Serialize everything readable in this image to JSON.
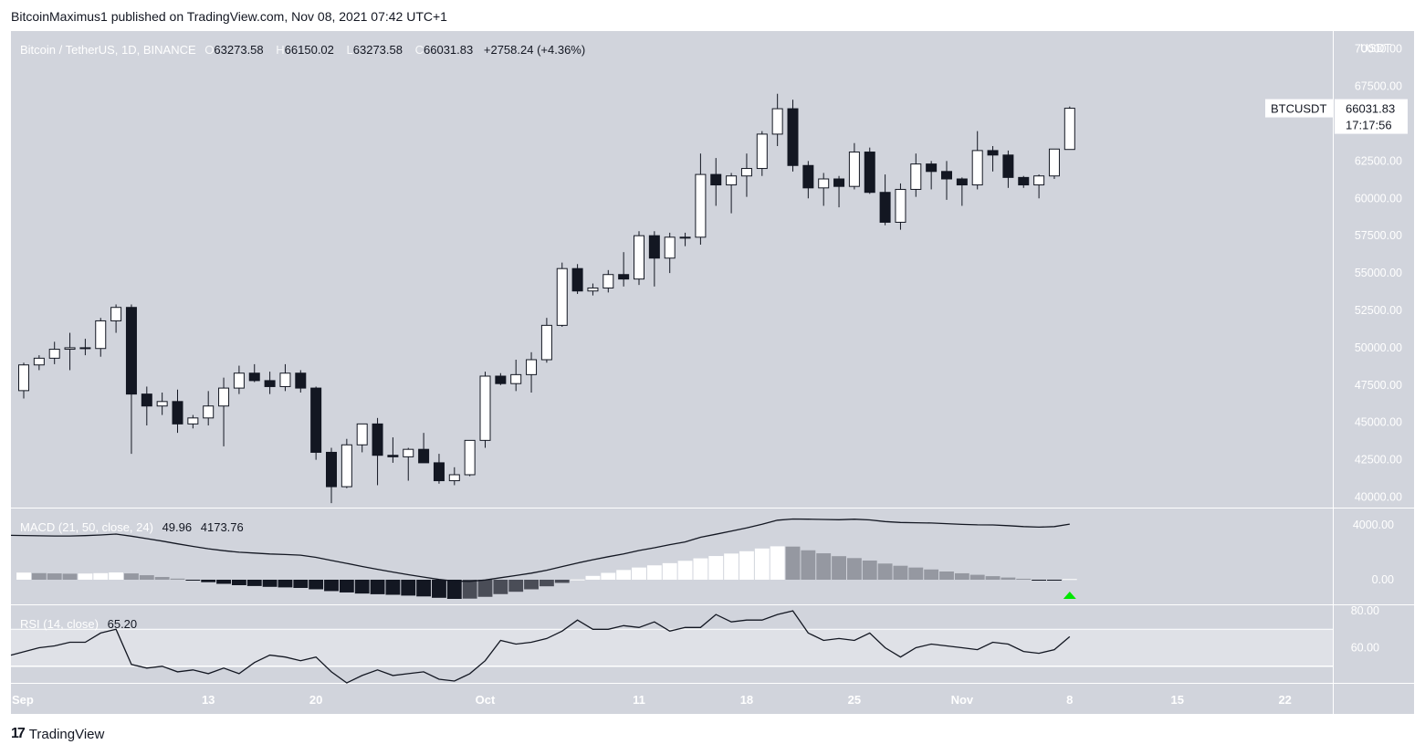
{
  "header": {
    "published_text": "BitcoinMaximus1 published on TradingView.com, Nov 08, 2021 07:42 UTC+1"
  },
  "footer": {
    "logo_mark": "17",
    "brand": "TradingView"
  },
  "colors": {
    "pane_bg": "#d1d4dc",
    "candle_up": "#ffffff",
    "candle_down": "#131722",
    "line": "#131722",
    "hist_grey": "#9598a1",
    "hist_dark": "#4a4d57",
    "signal_arrow": "#00e600",
    "label_bg": "#ffffff"
  },
  "chart_data": {
    "type": "candlestick",
    "symbol_title": "Bitcoin / TetherUS, 1D, BINANCE",
    "ohlc_readout": {
      "o_label": "O",
      "o": "63273.58",
      "h_label": "H",
      "h": "66150.02",
      "l_label": "L",
      "l": "63273.58",
      "c_label": "C",
      "c": "66031.83",
      "change": "+2758.24 (+4.36%)"
    },
    "price_axis": {
      "unit": "USDT",
      "ticks": [
        "70000.00",
        "67500.00",
        "65000.00",
        "62500.00",
        "60000.00",
        "57500.00",
        "55000.00",
        "52500.00",
        "50000.00",
        "47500.00",
        "45000.00",
        "42500.00",
        "40000.00"
      ],
      "tick_values": [
        70000,
        67500,
        65000,
        62500,
        60000,
        57500,
        55000,
        52500,
        50000,
        47500,
        45000,
        42500,
        40000
      ],
      "ylim": [
        39300,
        71200
      ]
    },
    "last_price_label": {
      "symbol": "BTCUSDT",
      "price": "66031.83",
      "countdown": "17:17:56",
      "value": 66031.83
    },
    "date_axis": {
      "labels": [
        "Sep",
        "13",
        "20",
        "Oct",
        "11",
        "18",
        "25",
        "Nov",
        "8",
        "15",
        "22"
      ],
      "label_day_index": [
        0,
        12,
        19,
        30,
        40,
        47,
        54,
        61,
        68,
        75,
        82
      ]
    },
    "candles": [
      [
        47130,
        49000,
        46600,
        48850
      ],
      [
        48850,
        49500,
        48500,
        49300
      ],
      [
        49300,
        50400,
        48900,
        49900
      ],
      [
        49900,
        51000,
        48500,
        50000
      ],
      [
        50000,
        50600,
        49500,
        49950
      ],
      [
        49950,
        52000,
        49400,
        51800
      ],
      [
        51800,
        52900,
        51000,
        52700
      ],
      [
        52700,
        52900,
        42900,
        46900
      ],
      [
        46900,
        47400,
        44800,
        46100
      ],
      [
        46100,
        47000,
        45500,
        46400
      ],
      [
        46400,
        47200,
        44300,
        44900
      ],
      [
        44900,
        45500,
        44600,
        45300
      ],
      [
        45300,
        47100,
        44800,
        46100
      ],
      [
        46100,
        48000,
        43400,
        47300
      ],
      [
        47300,
        48800,
        46900,
        48300
      ],
      [
        48300,
        48900,
        47700,
        47800
      ],
      [
        47800,
        48400,
        46900,
        47400
      ],
      [
        47400,
        48900,
        47100,
        48300
      ],
      [
        48300,
        48500,
        47000,
        47300
      ],
      [
        47300,
        47400,
        42500,
        43000
      ],
      [
        43000,
        43300,
        39600,
        40700
      ],
      [
        40700,
        43900,
        40600,
        43500
      ],
      [
        43500,
        44900,
        43000,
        44900
      ],
      [
        44900,
        45300,
        40800,
        42800
      ],
      [
        42800,
        44000,
        42300,
        42700
      ],
      [
        42700,
        43300,
        41100,
        43200
      ],
      [
        43200,
        44300,
        42500,
        42300
      ],
      [
        42300,
        42900,
        40900,
        41100
      ],
      [
        41100,
        42000,
        40800,
        41500
      ],
      [
        41500,
        43800,
        41400,
        43800
      ],
      [
        43800,
        48400,
        43300,
        48100
      ],
      [
        48100,
        48300,
        47500,
        47600
      ],
      [
        47600,
        49200,
        47100,
        48200
      ],
      [
        48200,
        49700,
        47000,
        49200
      ],
      [
        49200,
        52000,
        49000,
        51500
      ],
      [
        51500,
        55700,
        51400,
        55300
      ],
      [
        55300,
        55600,
        53600,
        53800
      ],
      [
        53800,
        54300,
        53500,
        54000
      ],
      [
        54000,
        55200,
        53700,
        54900
      ],
      [
        54900,
        56400,
        54100,
        54600
      ],
      [
        54600,
        57800,
        54200,
        57500
      ],
      [
        57500,
        57800,
        54100,
        56000
      ],
      [
        56000,
        57700,
        55000,
        57400
      ],
      [
        57400,
        57700,
        56800,
        57400
      ],
      [
        57400,
        63000,
        56900,
        61600
      ],
      [
        61600,
        62700,
        59500,
        60900
      ],
      [
        60900,
        61700,
        59000,
        61500
      ],
      [
        61500,
        63000,
        60100,
        62000
      ],
      [
        62000,
        64500,
        61500,
        64300
      ],
      [
        64300,
        67000,
        63500,
        66000
      ],
      [
        66000,
        66600,
        61800,
        62200
      ],
      [
        62200,
        62500,
        60000,
        60700
      ],
      [
        60700,
        61700,
        59500,
        61300
      ],
      [
        61300,
        61500,
        59400,
        60800
      ],
      [
        60800,
        63700,
        60600,
        63100
      ],
      [
        63100,
        63400,
        60300,
        60400
      ],
      [
        60400,
        61600,
        58200,
        58400
      ],
      [
        58400,
        61000,
        57900,
        60600
      ],
      [
        60600,
        63000,
        60100,
        62300
      ],
      [
        62300,
        62500,
        60600,
        61800
      ],
      [
        61800,
        62500,
        59900,
        61300
      ],
      [
        61300,
        61400,
        59500,
        60900
      ],
      [
        60900,
        64500,
        60600,
        63200
      ],
      [
        63200,
        63500,
        61800,
        62900
      ],
      [
        62900,
        63200,
        60700,
        61400
      ],
      [
        61400,
        61500,
        60700,
        60900
      ],
      [
        60900,
        61600,
        60000,
        61500
      ],
      [
        61500,
        63300,
        61300,
        63300
      ],
      [
        63273.58,
        66150.02,
        63273.58,
        66031.83
      ]
    ],
    "macd": {
      "label": "MACD (21, 50, close, 24)",
      "hist_value": "49.96",
      "macd_value": "4173.76",
      "ticks": [
        "4000.00",
        "0.00"
      ],
      "tick_values": [
        4000,
        0
      ],
      "ylim": [
        -1800,
        5200
      ],
      "line": [
        3240,
        3210,
        3190,
        3190,
        3220,
        3270,
        3330,
        3180,
        3000,
        2820,
        2620,
        2430,
        2260,
        2120,
        2010,
        1950,
        1880,
        1840,
        1790,
        1630,
        1410,
        1190,
        970,
        760,
        560,
        370,
        190,
        20,
        -100,
        -120,
        -20,
        150,
        310,
        480,
        690,
        960,
        1220,
        1460,
        1680,
        1880,
        2130,
        2330,
        2560,
        2760,
        3100,
        3320,
        3550,
        3780,
        4050,
        4350,
        4430,
        4420,
        4400,
        4380,
        4420,
        4370,
        4250,
        4180,
        4160,
        4140,
        4090,
        4040,
        4010,
        4000,
        3950,
        3880,
        3840,
        3880,
        4060
      ],
      "hist": [
        520,
        480,
        460,
        440,
        450,
        480,
        530,
        460,
        330,
        200,
        80,
        -60,
        -180,
        -300,
        -400,
        -460,
        -520,
        -560,
        -600,
        -700,
        -830,
        -930,
        -1010,
        -1060,
        -1100,
        -1160,
        -1220,
        -1320,
        -1400,
        -1380,
        -1250,
        -1050,
        -880,
        -700,
        -480,
        -230,
        20,
        280,
        500,
        710,
        890,
        1050,
        1210,
        1380,
        1560,
        1730,
        1910,
        2080,
        2280,
        2440,
        2420,
        2150,
        1930,
        1720,
        1580,
        1400,
        1180,
        1020,
        890,
        750,
        600,
        470,
        360,
        260,
        160,
        70,
        -20,
        -60,
        50
      ],
      "signal_arrow": "up"
    },
    "rsi": {
      "label": "RSI (14, close)",
      "value": "65.20",
      "ticks": [
        "80.00",
        "60.00"
      ],
      "tick_values": [
        80,
        60
      ],
      "band": [
        50,
        70
      ],
      "ylim": [
        41,
        83
      ],
      "values": [
        56,
        60,
        61,
        63,
        63,
        68,
        70,
        51,
        49,
        50,
        47,
        48,
        46,
        49,
        46,
        52,
        56,
        55,
        53,
        55,
        47,
        40,
        45,
        48,
        45,
        46,
        47,
        43,
        42,
        46,
        53,
        64,
        62,
        63,
        65,
        69,
        75,
        70,
        70,
        72,
        71,
        74,
        69,
        71,
        71,
        78,
        74,
        75,
        75,
        78,
        80,
        68,
        64,
        65,
        64,
        68,
        60,
        55,
        60,
        62,
        61,
        60,
        59,
        63,
        62,
        58,
        57,
        59,
        66
      ]
    }
  }
}
